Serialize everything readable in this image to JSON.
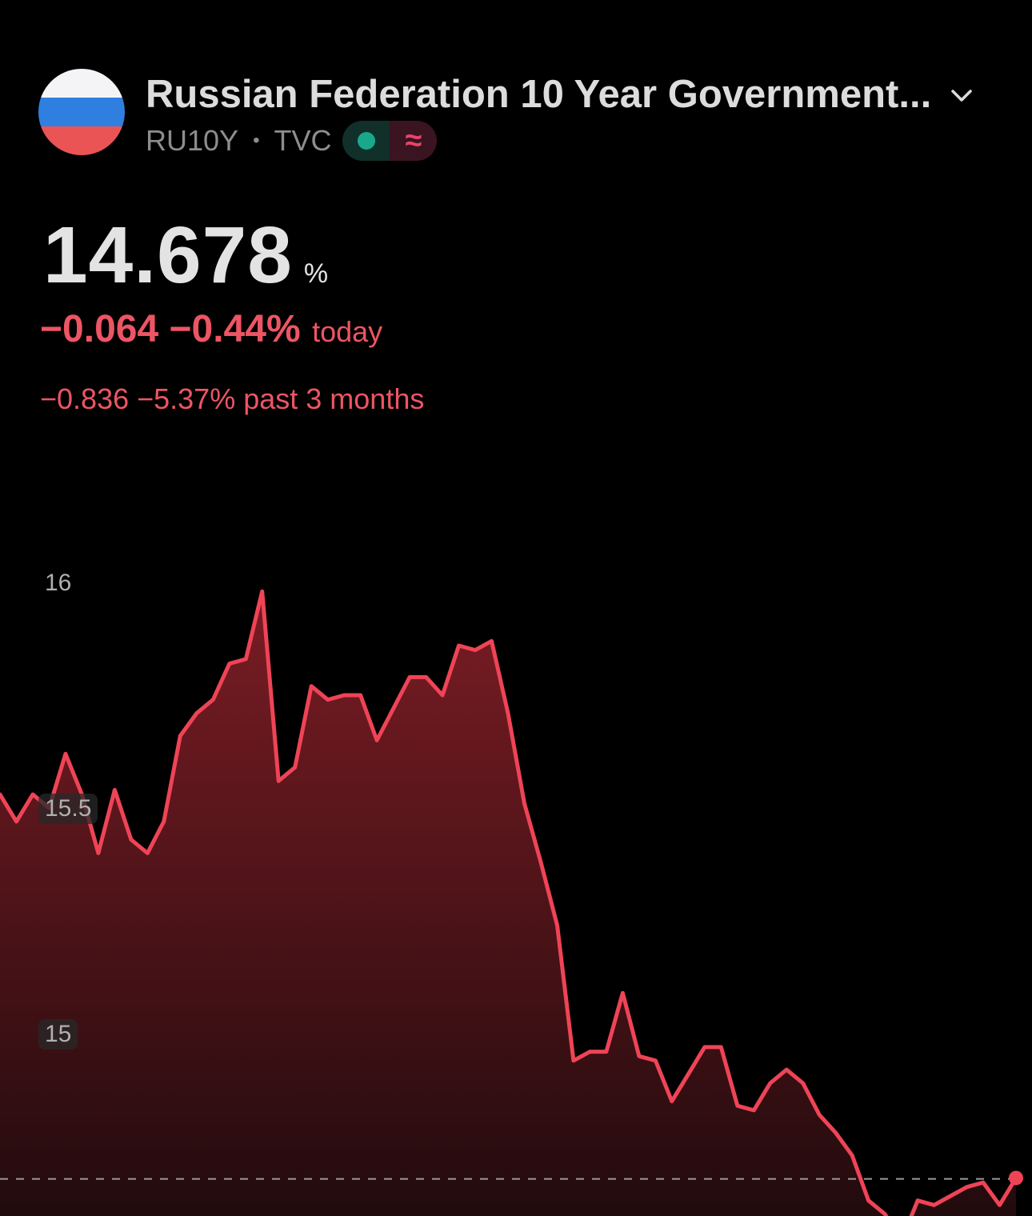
{
  "header": {
    "title": "Russian Federation 10 Year Government...",
    "symbol": "RU10Y",
    "exchange": "TVC",
    "icons": {
      "expand": "chevron-down-icon",
      "market_status": "green-dot-icon",
      "data_type": "approx-icon"
    },
    "approx_glyph": "≈"
  },
  "quote": {
    "value": "14.678",
    "unit": "%",
    "today_change": "−0.064 −0.44%",
    "today_label": "today",
    "period_change": "−0.836 −5.37% past 3 months"
  },
  "colors": {
    "line": "#ee4456",
    "negative": "#ee5564",
    "background": "#000000"
  },
  "chart_data": {
    "type": "area",
    "y_ticks": [
      "16",
      "15.5",
      "15"
    ],
    "ylim": [
      14.27,
      16.05
    ],
    "reference_line": 14.678,
    "grid": false,
    "values": [
      15.53,
      15.47,
      15.53,
      15.5,
      15.62,
      15.53,
      15.4,
      15.54,
      15.43,
      15.4,
      15.47,
      15.66,
      15.71,
      15.74,
      15.82,
      15.83,
      15.98,
      15.56,
      15.59,
      15.77,
      15.74,
      15.75,
      15.75,
      15.65,
      15.72,
      15.79,
      15.79,
      15.75,
      15.86,
      15.85,
      15.87,
      15.71,
      15.51,
      15.38,
      15.24,
      14.94,
      14.96,
      14.96,
      15.09,
      14.95,
      14.94,
      14.85,
      14.91,
      14.97,
      14.97,
      14.84,
      14.83,
      14.89,
      14.92,
      14.89,
      14.82,
      14.78,
      14.73,
      14.63,
      14.6,
      14.54,
      14.63,
      14.62,
      14.64,
      14.66,
      14.67,
      14.62,
      14.68
    ]
  }
}
